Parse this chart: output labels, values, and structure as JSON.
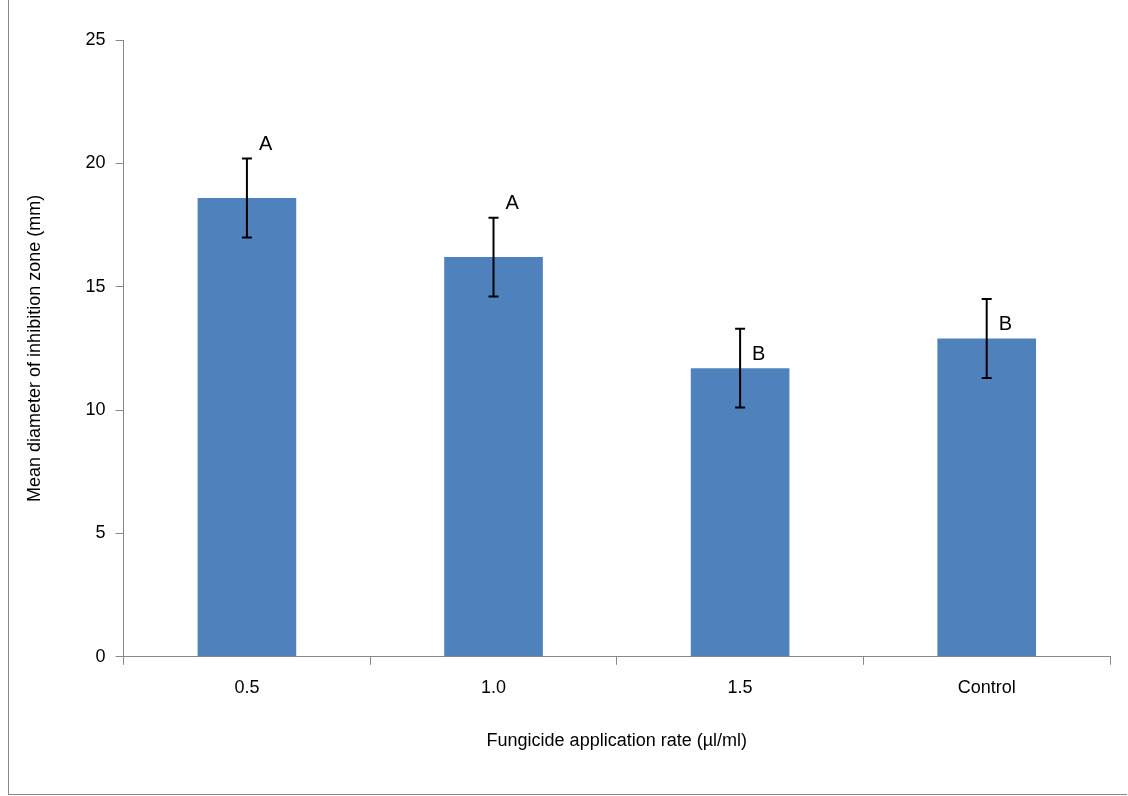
{
  "chart_data": {
    "type": "bar",
    "xlabel": "Fungicide application rate (µl/ml)",
    "ylabel": "Mean diameter of inhibition zone (mm)",
    "categories": [
      "0.5",
      "1.0",
      "1.5",
      "Control"
    ],
    "values": [
      18.6,
      16.2,
      11.7,
      12.9
    ],
    "errors": [
      1.6,
      1.6,
      1.6,
      1.6
    ],
    "color": "#4f81bd",
    "ylim": [
      0,
      25
    ],
    "yticks": [
      0,
      5,
      10,
      15,
      20,
      25
    ],
    "grid": false,
    "legend": false,
    "annotations": [
      {
        "text": "A",
        "x": "0.5",
        "y": 20.2
      },
      {
        "text": "A",
        "x": "1.0",
        "y": 17.8
      },
      {
        "text": "B",
        "x": "1.5",
        "y": 11.7
      },
      {
        "text": "B",
        "x": "Control",
        "y": 12.9
      }
    ]
  }
}
